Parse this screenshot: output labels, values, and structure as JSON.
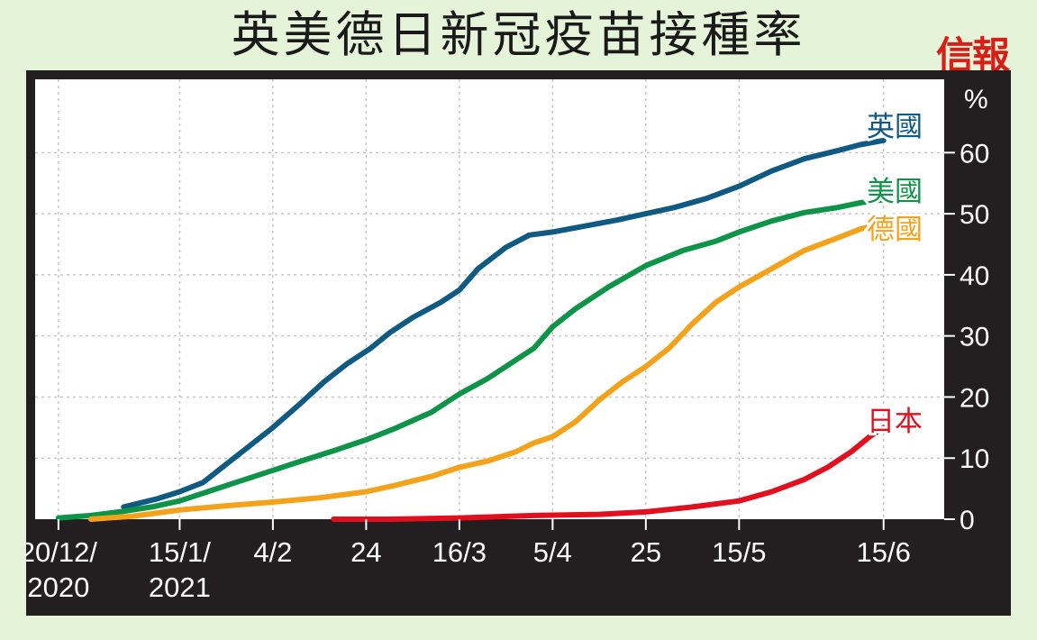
{
  "title": "英美德日新冠疫苗接種率",
  "brand": "信報",
  "colors": {
    "background": "#e5f3d9",
    "panel": "#231f20",
    "plot": "#ffffff",
    "grid": "#c8c8c8",
    "uk": "#0e5a83",
    "us": "#0e9448",
    "germany": "#f5a21b",
    "japan": "#e2101f"
  },
  "chart_data": {
    "type": "line",
    "title": "英美德日新冠疫苗接種率",
    "xlabel": "",
    "ylabel": "%",
    "x_tick_labels": [
      {
        "x": "2020-12-20",
        "lines": [
          "20/12/",
          "2020"
        ]
      },
      {
        "x": "2021-01-15",
        "lines": [
          "15/1/",
          "2021"
        ]
      },
      {
        "x": "2021-02-04",
        "lines": [
          "4/2"
        ]
      },
      {
        "x": "2021-02-24",
        "lines": [
          "24"
        ]
      },
      {
        "x": "2021-03-16",
        "lines": [
          "16/3"
        ]
      },
      {
        "x": "2021-04-05",
        "lines": [
          "5/4"
        ]
      },
      {
        "x": "2021-04-25",
        "lines": [
          "25"
        ]
      },
      {
        "x": "2021-05-15",
        "lines": [
          "15/5"
        ]
      },
      {
        "x": "2021-06-15",
        "lines": [
          "15/6"
        ]
      }
    ],
    "y_ticks": [
      0,
      10,
      20,
      30,
      40,
      50,
      60
    ],
    "y_unit": "%",
    "xlim": [
      "2020-12-15",
      "2021-06-28"
    ],
    "ylim": [
      0,
      72
    ],
    "grid": true,
    "legend_placement": "line end labels (right)",
    "series": [
      {
        "name": "英國",
        "color_key": "uk",
        "points": [
          [
            "2021-01-03",
            2
          ],
          [
            "2021-01-10",
            3.3
          ],
          [
            "2021-01-15",
            4.5
          ],
          [
            "2021-01-20",
            6
          ],
          [
            "2021-01-25",
            9
          ],
          [
            "2021-01-30",
            12
          ],
          [
            "2021-02-04",
            15
          ],
          [
            "2021-02-10",
            19
          ],
          [
            "2021-02-15",
            22.5
          ],
          [
            "2021-02-20",
            25.5
          ],
          [
            "2021-02-25",
            28
          ],
          [
            "2021-03-01",
            30.5
          ],
          [
            "2021-03-06",
            33
          ],
          [
            "2021-03-12",
            35.5
          ],
          [
            "2021-03-16",
            37.5
          ],
          [
            "2021-03-20",
            41
          ],
          [
            "2021-03-26",
            44.5
          ],
          [
            "2021-03-31",
            46.5
          ],
          [
            "2021-04-05",
            47
          ],
          [
            "2021-04-12",
            48
          ],
          [
            "2021-04-19",
            49
          ],
          [
            "2021-04-25",
            50
          ],
          [
            "2021-05-01",
            51
          ],
          [
            "2021-05-08",
            52.5
          ],
          [
            "2021-05-15",
            54.5
          ],
          [
            "2021-05-22",
            57
          ],
          [
            "2021-05-29",
            59
          ],
          [
            "2021-06-05",
            60.3
          ],
          [
            "2021-06-10",
            61.3
          ],
          [
            "2021-06-15",
            62
          ]
        ]
      },
      {
        "name": "美國",
        "color_key": "us",
        "points": [
          [
            "2020-12-20",
            0.2
          ],
          [
            "2020-12-27",
            0.6
          ],
          [
            "2021-01-03",
            1.3
          ],
          [
            "2021-01-09",
            2
          ],
          [
            "2021-01-15",
            3
          ],
          [
            "2021-01-21",
            4.5
          ],
          [
            "2021-01-27",
            6
          ],
          [
            "2021-02-04",
            8
          ],
          [
            "2021-02-10",
            9.5
          ],
          [
            "2021-02-17",
            11.2
          ],
          [
            "2021-02-24",
            13
          ],
          [
            "2021-03-02",
            14.8
          ],
          [
            "2021-03-10",
            17.5
          ],
          [
            "2021-03-16",
            20.5
          ],
          [
            "2021-03-22",
            23
          ],
          [
            "2021-03-28",
            26
          ],
          [
            "2021-04-01",
            28
          ],
          [
            "2021-04-05",
            31.5
          ],
          [
            "2021-04-10",
            34.5
          ],
          [
            "2021-04-17",
            38
          ],
          [
            "2021-04-25",
            41.5
          ],
          [
            "2021-05-03",
            44
          ],
          [
            "2021-05-10",
            45.5
          ],
          [
            "2021-05-15",
            47
          ],
          [
            "2021-05-22",
            48.8
          ],
          [
            "2021-05-29",
            50.2
          ],
          [
            "2021-06-05",
            51
          ],
          [
            "2021-06-10",
            51.8
          ],
          [
            "2021-06-15",
            52.3
          ]
        ]
      },
      {
        "name": "德國",
        "color_key": "germany",
        "points": [
          [
            "2020-12-27",
            0
          ],
          [
            "2021-01-05",
            0.5
          ],
          [
            "2021-01-15",
            1.5
          ],
          [
            "2021-01-25",
            2.2
          ],
          [
            "2021-02-04",
            2.8
          ],
          [
            "2021-02-14",
            3.5
          ],
          [
            "2021-02-24",
            4.5
          ],
          [
            "2021-03-02",
            5.5
          ],
          [
            "2021-03-10",
            7
          ],
          [
            "2021-03-16",
            8.5
          ],
          [
            "2021-03-22",
            9.5
          ],
          [
            "2021-03-28",
            11
          ],
          [
            "2021-04-01",
            12.5
          ],
          [
            "2021-04-05",
            13.5
          ],
          [
            "2021-04-10",
            16
          ],
          [
            "2021-04-15",
            19.5
          ],
          [
            "2021-04-20",
            22.5
          ],
          [
            "2021-04-25",
            25
          ],
          [
            "2021-04-30",
            28
          ],
          [
            "2021-05-05",
            32
          ],
          [
            "2021-05-10",
            35.5
          ],
          [
            "2021-05-15",
            38
          ],
          [
            "2021-05-22",
            41
          ],
          [
            "2021-05-29",
            44
          ],
          [
            "2021-06-05",
            46
          ],
          [
            "2021-06-10",
            47.5
          ],
          [
            "2021-06-15",
            48.5
          ]
        ]
      },
      {
        "name": "日本",
        "color_key": "japan",
        "points": [
          [
            "2021-02-17",
            0
          ],
          [
            "2021-03-01",
            0
          ],
          [
            "2021-03-16",
            0.2
          ],
          [
            "2021-04-01",
            0.6
          ],
          [
            "2021-04-15",
            0.8
          ],
          [
            "2021-04-25",
            1.2
          ],
          [
            "2021-05-05",
            2
          ],
          [
            "2021-05-15",
            3
          ],
          [
            "2021-05-22",
            4.5
          ],
          [
            "2021-05-29",
            6.5
          ],
          [
            "2021-06-03",
            8.5
          ],
          [
            "2021-06-08",
            11
          ],
          [
            "2021-06-12",
            13.5
          ],
          [
            "2021-06-15",
            15
          ]
        ]
      }
    ]
  }
}
